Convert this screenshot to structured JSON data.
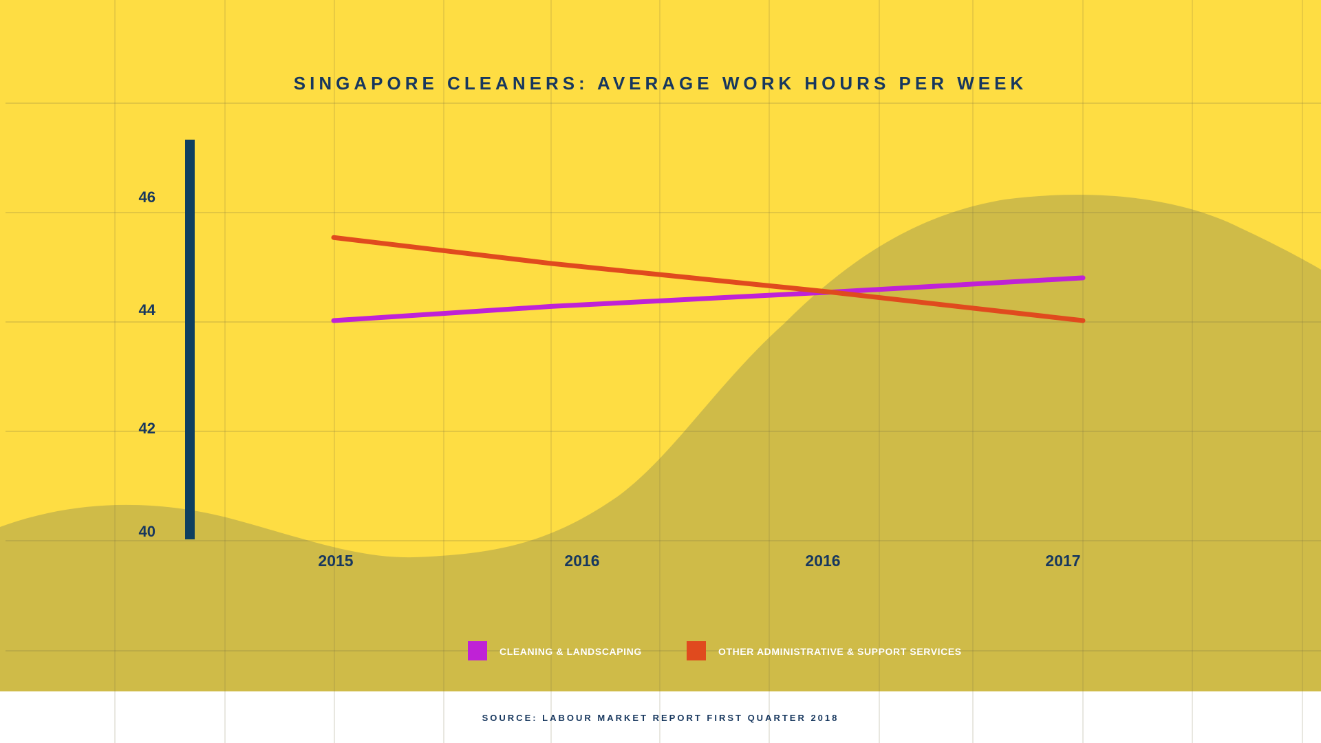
{
  "chart_data": {
    "type": "line",
    "title": "SINGAPORE CLEANERS: AVERAGE WORK HOURS PER WEEK",
    "categories": [
      "2015",
      "2016",
      "2016",
      "2017"
    ],
    "yticks": [
      "46",
      "44",
      "42",
      "40"
    ],
    "ylim": [
      40,
      47.2
    ],
    "series": [
      {
        "name": "CLEANING & LANDSCAPING",
        "color": "#bf22d6",
        "values": [
          44.0,
          44.3,
          44.6,
          44.9
        ]
      },
      {
        "name": "OTHER ADMINISTRATIVE & SUPPORT SERVICES",
        "color": "#e04a1e",
        "values": [
          45.75,
          45.2,
          44.6,
          44.0
        ]
      }
    ],
    "grid": true,
    "legend_position": "bottom",
    "source": "SOURCE: LABOUR MARKET REPORT FIRST QUARTER 2018"
  },
  "colors": {
    "background": "#fedd43",
    "wave": "#cfbb48",
    "text": "#17375e",
    "axis_bar": "#0f3f5f"
  }
}
